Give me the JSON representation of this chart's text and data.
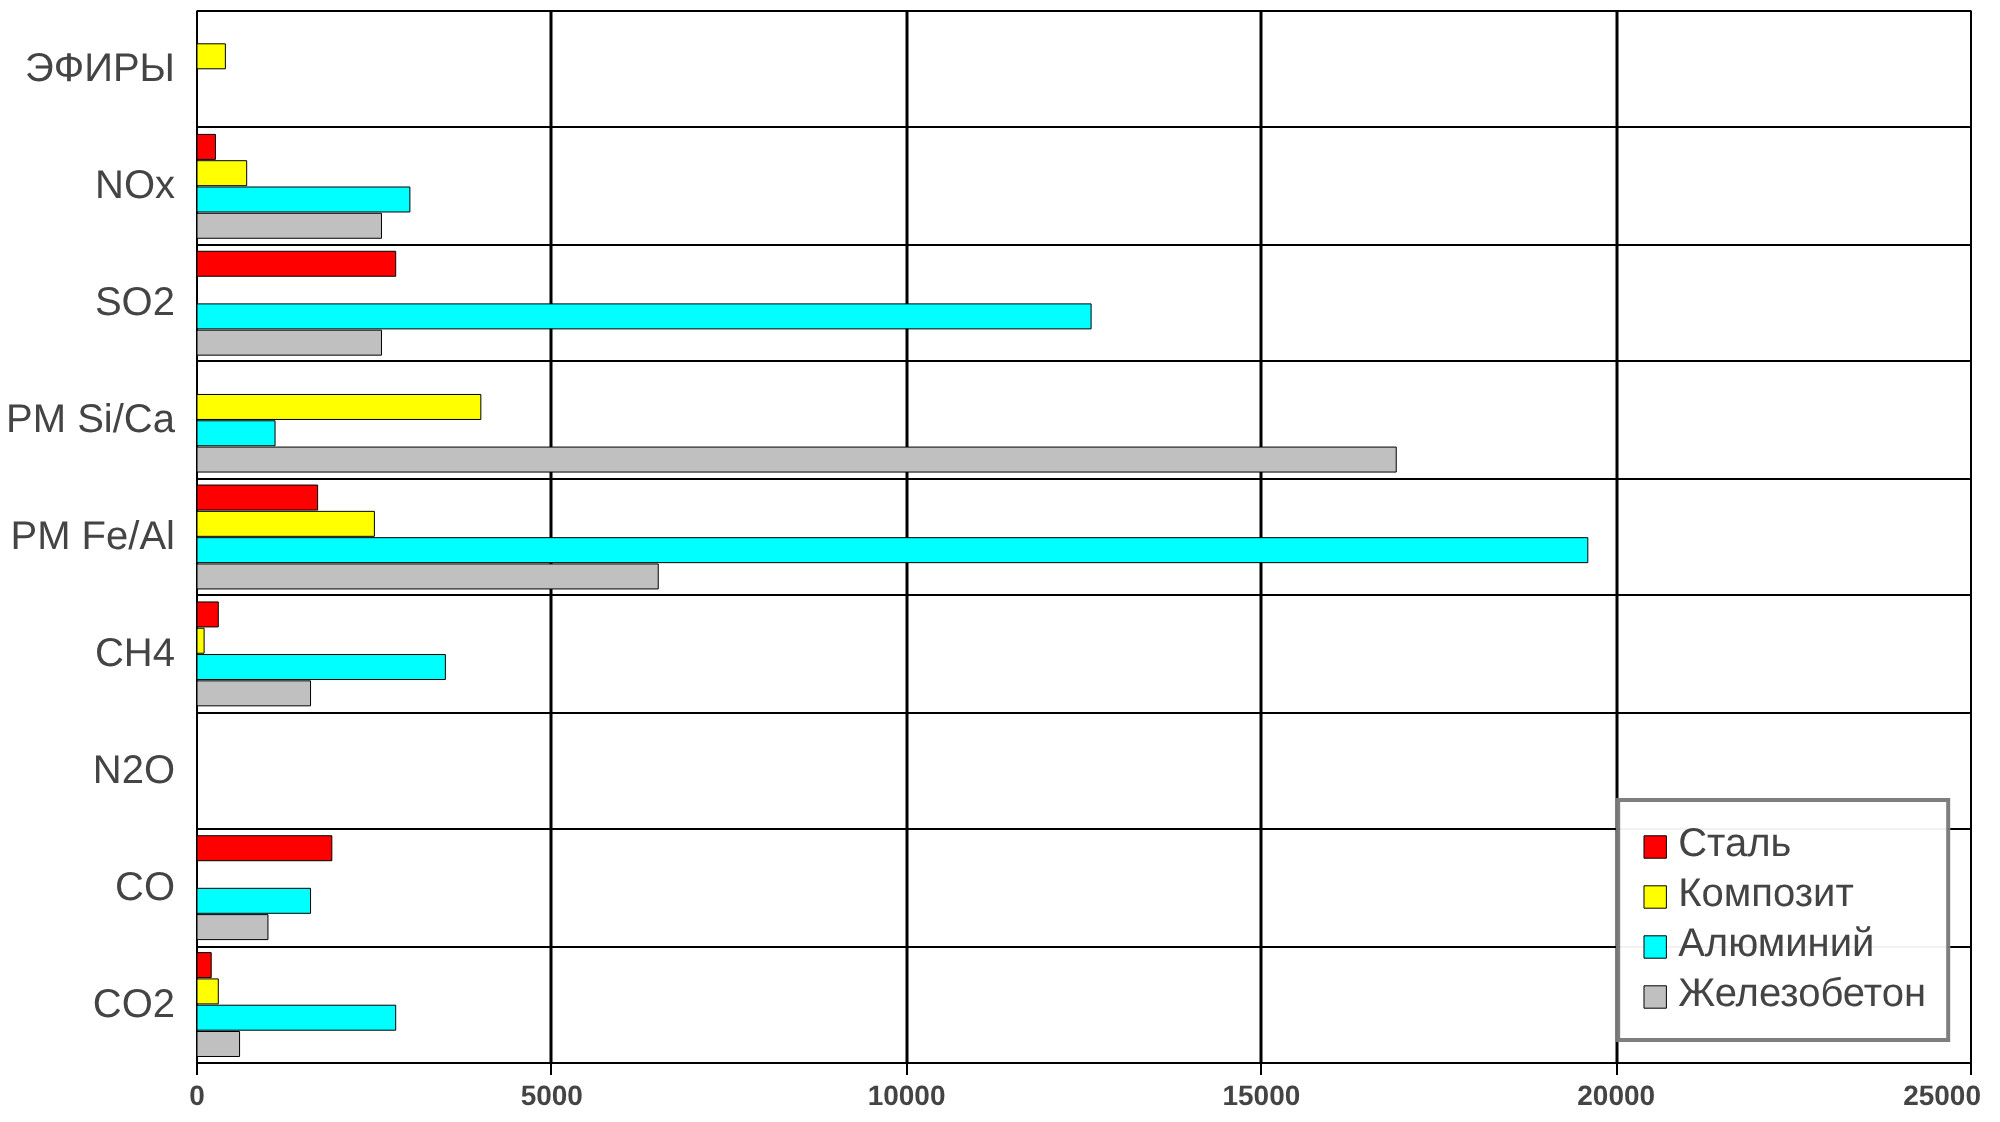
{
  "chart_data": {
    "type": "bar",
    "orientation": "horizontal",
    "categories": [
      "ЭФИРЫ",
      "NOx",
      "SO2",
      "PM Si/Ca",
      "PM Fe/Al",
      "CH4",
      "N2O",
      "CO",
      "CO2"
    ],
    "series": [
      {
        "name": "Сталь",
        "color": "#ff0000",
        "values": [
          null,
          260,
          2800,
          null,
          1700,
          300,
          null,
          1900,
          200
        ]
      },
      {
        "name": "Композит",
        "color": "#ffff00",
        "values": [
          400,
          700,
          null,
          4000,
          2500,
          100,
          null,
          null,
          300
        ]
      },
      {
        "name": "Алюминий",
        "color": "#00ffff",
        "values": [
          null,
          3000,
          12600,
          1100,
          19600,
          3500,
          null,
          1600,
          2800
        ]
      },
      {
        "name": "Железобетон",
        "color": "#c0c0c0",
        "values": [
          null,
          2600,
          2600,
          16900,
          6500,
          1600,
          null,
          1000,
          600
        ]
      }
    ],
    "xlim": [
      0,
      25000
    ],
    "xticks": [
      0,
      5000,
      10000,
      15000,
      20000,
      25000
    ],
    "grid": true,
    "legend": "bottom right"
  }
}
